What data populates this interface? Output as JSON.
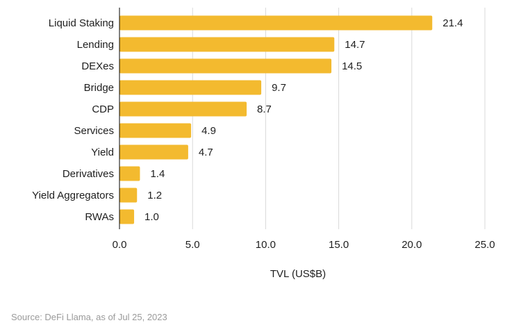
{
  "chart_data": {
    "type": "bar",
    "orientation": "horizontal",
    "categories": [
      "Liquid Staking",
      "Lending",
      "DEXes",
      "Bridge",
      "CDP",
      "Services",
      "Yield",
      "Derivatives",
      "Yield Aggregators",
      "RWAs"
    ],
    "values": [
      21.4,
      14.7,
      14.5,
      9.7,
      8.7,
      4.9,
      4.7,
      1.4,
      1.2,
      1.0
    ],
    "value_labels": [
      "21.4",
      "14.7",
      "14.5",
      "9.7",
      "8.7",
      "4.9",
      "4.7",
      "1.4",
      "1.2",
      "1.0"
    ],
    "xlabel": "TVL (US$B)",
    "xlim": [
      0,
      25
    ],
    "x_ticks": [
      "0.0",
      "5.0",
      "10.0",
      "15.0",
      "20.0",
      "25.0"
    ],
    "grid": "vertical",
    "colors": {
      "bar": "#F3BA2F",
      "grid": "#d9d9d9",
      "axis": "#000000"
    }
  },
  "source": "Source: DeFi Llama, as of Jul 25, 2023"
}
